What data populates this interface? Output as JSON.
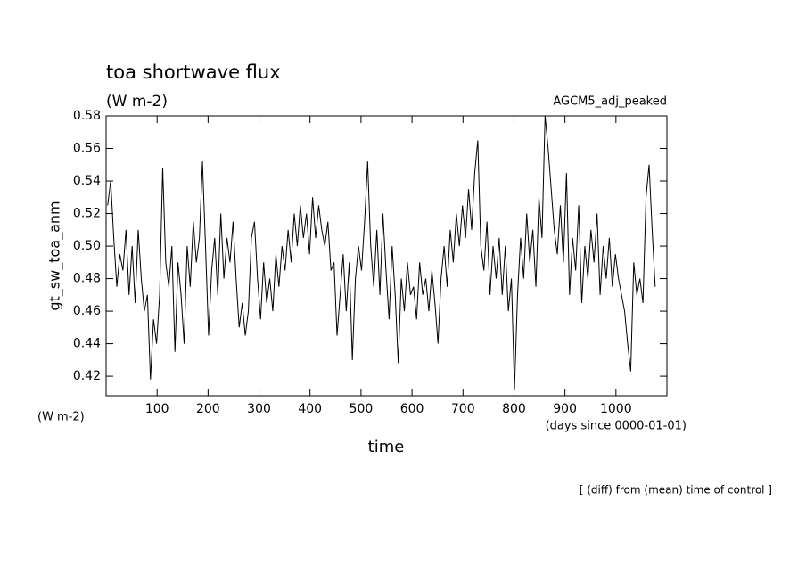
{
  "chart_data": {
    "type": "line",
    "title": "toa shortwave flux",
    "subtitle": "(W m-2)",
    "y_label": "gt_sw_toa_anm",
    "y_unit": "(W m-2)",
    "x_label": "time",
    "x_unit": "(days since 0000-01-01)",
    "annotation": "[ (diff) from (mean) time of control ]",
    "xlim": [
      0,
      1100
    ],
    "xticks": [
      100,
      200,
      300,
      400,
      500,
      600,
      700,
      800,
      900,
      1000
    ],
    "ylim": [
      0.408,
      0.58
    ],
    "yticks": [
      {
        "value": 0.42,
        "label": "0.42"
      },
      {
        "value": 0.44,
        "label": "0.44"
      },
      {
        "value": 0.46,
        "label": "0.46"
      },
      {
        "value": 0.48,
        "label": "0.48"
      },
      {
        "value": 0.5,
        "label": "0.50"
      },
      {
        "value": 0.52,
        "label": "0.52"
      },
      {
        "value": 0.54,
        "label": "0.54"
      },
      {
        "value": 0.56,
        "label": "0.56"
      },
      {
        "value": 0.58,
        "label": "0.58"
      }
    ],
    "x": [
      3,
      9,
      15,
      21,
      27,
      33,
      39,
      45,
      51,
      57,
      63,
      69,
      75,
      81,
      87,
      93,
      99,
      105,
      111,
      117,
      123,
      129,
      135,
      141,
      147,
      153,
      159,
      165,
      171,
      177,
      183,
      189,
      195,
      201,
      207,
      213,
      219,
      225,
      231,
      237,
      243,
      249,
      255,
      261,
      267,
      273,
      279,
      285,
      291,
      297,
      303,
      309,
      315,
      321,
      327,
      333,
      339,
      345,
      351,
      357,
      363,
      369,
      375,
      381,
      387,
      393,
      399,
      405,
      411,
      417,
      423,
      429,
      435,
      441,
      447,
      453,
      459,
      465,
      471,
      477,
      483,
      489,
      495,
      501,
      507,
      513,
      519,
      525,
      531,
      537,
      543,
      549,
      555,
      561,
      567,
      573,
      579,
      585,
      591,
      597,
      603,
      609,
      615,
      621,
      627,
      633,
      639,
      645,
      651,
      657,
      663,
      669,
      675,
      681,
      687,
      693,
      699,
      705,
      711,
      717,
      723,
      729,
      735,
      741,
      747,
      753,
      759,
      765,
      771,
      777,
      783,
      789,
      795,
      801,
      807,
      813,
      819,
      825,
      831,
      837,
      843,
      849,
      855,
      861,
      867,
      873,
      879,
      885,
      891,
      897,
      903,
      909,
      915,
      921,
      927,
      933,
      939,
      945,
      951,
      957,
      963,
      969,
      975,
      981,
      987,
      993,
      999,
      1005,
      1011,
      1017,
      1023,
      1029,
      1035,
      1041,
      1047,
      1053,
      1059,
      1065,
      1071,
      1077
    ],
    "series": [
      {
        "name": "AGCM5_adj_peaked",
        "color": "#000000",
        "values": [
          0.525,
          0.54,
          0.505,
          0.475,
          0.495,
          0.485,
          0.51,
          0.47,
          0.5,
          0.465,
          0.51,
          0.48,
          0.46,
          0.47,
          0.418,
          0.455,
          0.44,
          0.47,
          0.548,
          0.49,
          0.475,
          0.5,
          0.435,
          0.49,
          0.47,
          0.44,
          0.5,
          0.475,
          0.515,
          0.49,
          0.505,
          0.552,
          0.5,
          0.445,
          0.485,
          0.505,
          0.47,
          0.52,
          0.48,
          0.505,
          0.49,
          0.515,
          0.48,
          0.45,
          0.465,
          0.445,
          0.46,
          0.505,
          0.515,
          0.48,
          0.455,
          0.49,
          0.465,
          0.48,
          0.46,
          0.495,
          0.475,
          0.5,
          0.485,
          0.51,
          0.49,
          0.52,
          0.5,
          0.525,
          0.505,
          0.52,
          0.495,
          0.53,
          0.505,
          0.525,
          0.51,
          0.5,
          0.515,
          0.485,
          0.49,
          0.445,
          0.47,
          0.495,
          0.46,
          0.49,
          0.43,
          0.48,
          0.5,
          0.485,
          0.515,
          0.552,
          0.5,
          0.475,
          0.51,
          0.47,
          0.52,
          0.485,
          0.455,
          0.5,
          0.47,
          0.428,
          0.48,
          0.46,
          0.49,
          0.47,
          0.475,
          0.455,
          0.49,
          0.47,
          0.48,
          0.46,
          0.485,
          0.465,
          0.44,
          0.48,
          0.5,
          0.475,
          0.51,
          0.49,
          0.52,
          0.5,
          0.525,
          0.505,
          0.535,
          0.51,
          0.545,
          0.565,
          0.5,
          0.485,
          0.515,
          0.47,
          0.5,
          0.48,
          0.505,
          0.47,
          0.5,
          0.46,
          0.48,
          0.412,
          0.47,
          0.505,
          0.48,
          0.52,
          0.49,
          0.51,
          0.475,
          0.53,
          0.505,
          0.58,
          0.56,
          0.535,
          0.51,
          0.495,
          0.525,
          0.49,
          0.545,
          0.47,
          0.505,
          0.485,
          0.525,
          0.465,
          0.5,
          0.48,
          0.51,
          0.49,
          0.52,
          0.47,
          0.5,
          0.48,
          0.505,
          0.475,
          0.495,
          0.48,
          0.47,
          0.46,
          0.44,
          0.423,
          0.49,
          0.47,
          0.48,
          0.465,
          0.53,
          0.55,
          0.51,
          0.475
        ]
      }
    ]
  }
}
